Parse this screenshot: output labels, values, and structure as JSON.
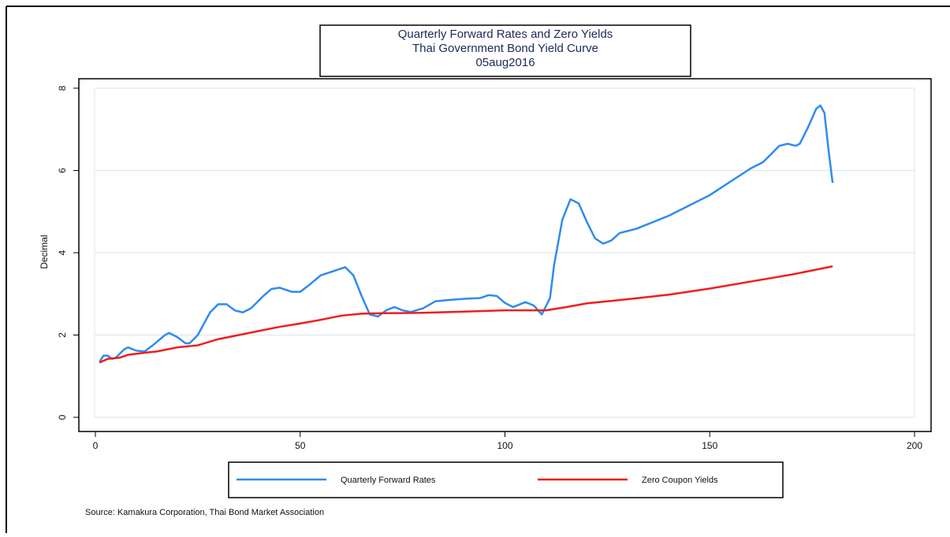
{
  "chart_data": {
    "type": "line",
    "title": [
      "Quarterly Forward Rates and Zero Yields",
      "Thai Government Bond Yield Curve",
      "05aug2016"
    ],
    "ylabel": "Decimal",
    "note": "Source: Kamakura Corporation, Thai Bond Market Association",
    "xlim": [
      0,
      200
    ],
    "xticks": [
      0,
      50,
      100,
      150,
      200
    ],
    "ylim": [
      0,
      8
    ],
    "yticks": [
      0,
      2,
      4,
      6,
      8
    ],
    "grid": true,
    "series": [
      {
        "name": "Quarterly Forward Rates",
        "color": "#2e8bef",
        "x": [
          1,
          2,
          3,
          4,
          5,
          7,
          8,
          10,
          12,
          14,
          17,
          18,
          20,
          22,
          23,
          25,
          28,
          30,
          32,
          34,
          36,
          38,
          41,
          43,
          45,
          48,
          50,
          52,
          55,
          58,
          61,
          63,
          65,
          67,
          69,
          71,
          73,
          75,
          77,
          80,
          83,
          86,
          90,
          94,
          96,
          98,
          100,
          102,
          105,
          107,
          109,
          111,
          112,
          114,
          116,
          118,
          120,
          122,
          124,
          126,
          128,
          132,
          140,
          150,
          160,
          163,
          165,
          167,
          169,
          171,
          172,
          174,
          176,
          177,
          178,
          179,
          180
        ],
        "values": [
          1.35,
          1.5,
          1.5,
          1.42,
          1.45,
          1.65,
          1.7,
          1.62,
          1.6,
          1.75,
          2.0,
          2.05,
          1.95,
          1.8,
          1.8,
          2.0,
          2.55,
          2.75,
          2.75,
          2.6,
          2.55,
          2.65,
          2.95,
          3.12,
          3.15,
          3.05,
          3.05,
          3.2,
          3.45,
          3.55,
          3.65,
          3.45,
          2.95,
          2.5,
          2.45,
          2.6,
          2.68,
          2.6,
          2.56,
          2.65,
          2.82,
          2.85,
          2.88,
          2.9,
          2.97,
          2.95,
          2.78,
          2.68,
          2.8,
          2.72,
          2.5,
          2.9,
          3.7,
          4.8,
          5.3,
          5.2,
          4.75,
          4.35,
          4.22,
          4.3,
          4.48,
          4.58,
          4.9,
          5.4,
          6.05,
          6.2,
          6.4,
          6.6,
          6.65,
          6.6,
          6.65,
          7.05,
          7.5,
          7.58,
          7.4,
          6.5,
          5.7
        ]
      },
      {
        "name": "Zero Coupon Yields",
        "color": "#f01c1c",
        "x": [
          1,
          3,
          6,
          8,
          12,
          15,
          20,
          25,
          30,
          35,
          40,
          45,
          50,
          55,
          60,
          65,
          70,
          80,
          90,
          100,
          110,
          115,
          120,
          130,
          140,
          150,
          160,
          170,
          180
        ],
        "values": [
          1.33,
          1.42,
          1.45,
          1.52,
          1.57,
          1.6,
          1.7,
          1.75,
          1.9,
          2.0,
          2.1,
          2.2,
          2.28,
          2.37,
          2.47,
          2.52,
          2.53,
          2.54,
          2.57,
          2.6,
          2.6,
          2.68,
          2.77,
          2.87,
          2.98,
          3.13,
          3.3,
          3.47,
          3.67
        ]
      }
    ]
  }
}
